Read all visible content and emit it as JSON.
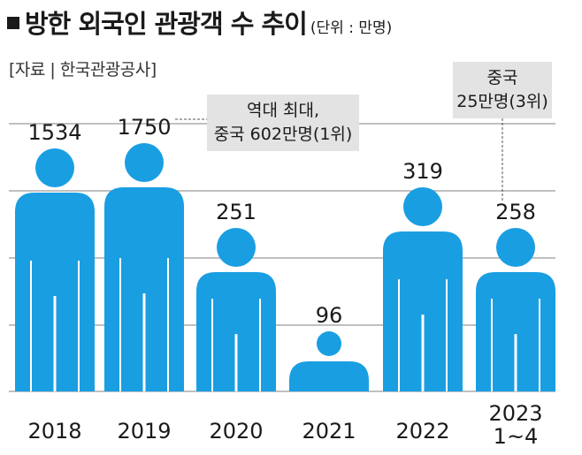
{
  "title": {
    "main": "방한 외국인 관광객 수 추이",
    "unit": "(단위 : 만명)"
  },
  "source": "[자료 | 한국관광공사]",
  "chart_data": {
    "type": "bar",
    "categories": [
      "2018",
      "2019",
      "2020",
      "2021",
      "2022",
      "2023\n1~4"
    ],
    "values": [
      1534,
      1750,
      251,
      96,
      319,
      258
    ],
    "value_labels": [
      "1534",
      "1750",
      "251",
      "96",
      "319",
      "258"
    ],
    "title": "방한 외국인 관광객 수 추이",
    "unit": "(단위 : 만명)",
    "grid": true,
    "annotations": [
      {
        "category": "2019",
        "lines": [
          "역대 최대,",
          "중국 602만명(1위)"
        ]
      },
      {
        "category": "2023\n1~4",
        "lines": [
          "중국",
          "25만명(3위)"
        ]
      }
    ]
  },
  "colors": {
    "bar": "#1a9ee2",
    "grid": "#9a9a9a",
    "annotation_box": "#e3e3e3",
    "text": "#1a1a1a"
  },
  "icons": {
    "bar_shape": "person-icon"
  }
}
